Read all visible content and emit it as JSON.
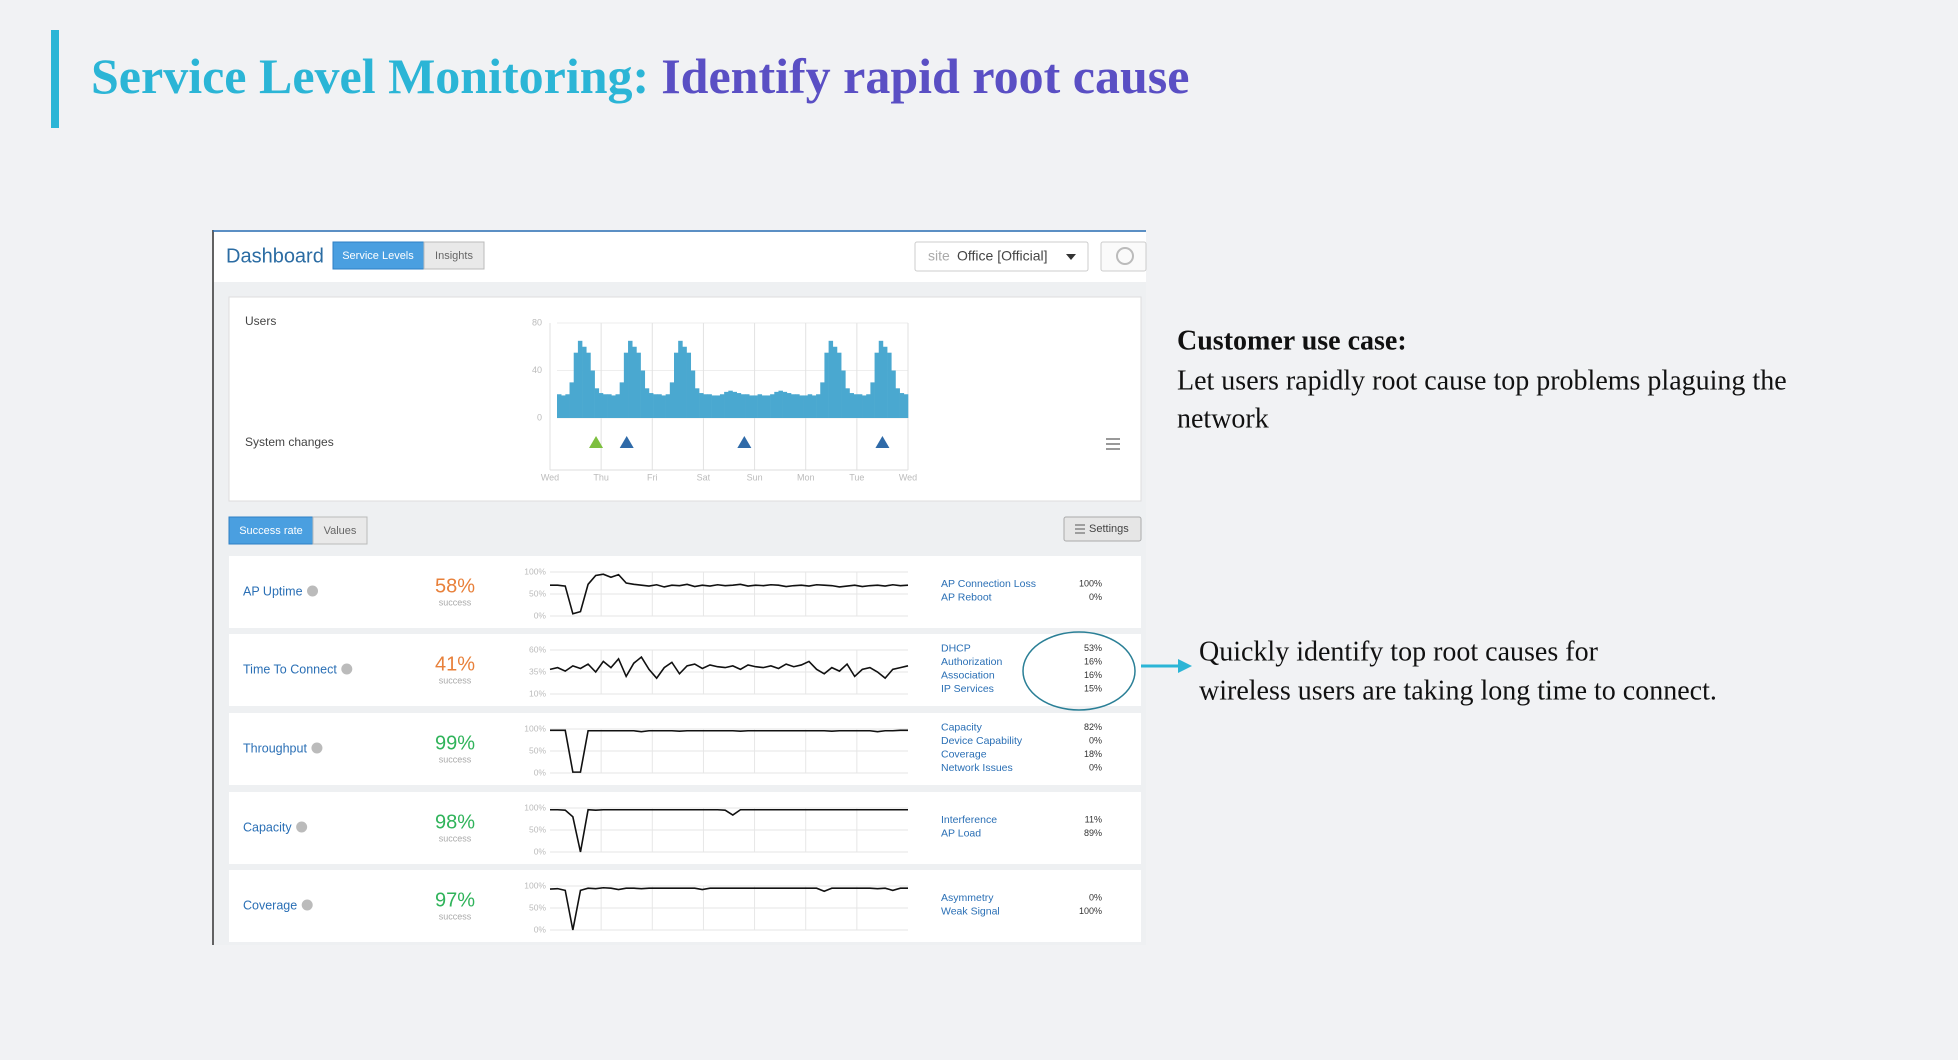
{
  "slide": {
    "title_part1": "Service Level Monitoring:",
    "title_part2": "Identify rapid root cause",
    "use_case_heading": "Customer use case:",
    "use_case_lines": [
      "Let users rapidly root cause top problems plaguing the",
      "network"
    ],
    "callout_lines": [
      "Quickly identify top root causes for",
      "wireless users are taking long time to connect."
    ]
  },
  "dashboard": {
    "title": "Dashboard",
    "tabs": [
      "Service Levels",
      "Insights"
    ],
    "site_label": "site",
    "site_value": "Office [Official]",
    "users_chart": {
      "type": "bar",
      "title": "Users",
      "events_label": "System changes",
      "ylim": [
        0,
        80
      ],
      "yticks": [
        80,
        40,
        0
      ],
      "xlim": [
        0,
        7
      ],
      "xticks": [
        {
          "value": 0,
          "label": "Wed"
        },
        {
          "value": 1,
          "label": "Thu"
        },
        {
          "value": 2,
          "label": "Fri"
        },
        {
          "value": 3,
          "label": "Sat"
        },
        {
          "value": 4,
          "label": "Sun"
        },
        {
          "value": 5,
          "label": "Mon"
        },
        {
          "value": 6,
          "label": "Tue"
        },
        {
          "value": 7,
          "label": "Wed"
        }
      ],
      "color": "#4aa8d0",
      "values": [
        20,
        19,
        20,
        30,
        55,
        65,
        60,
        55,
        40,
        25,
        21,
        20,
        20,
        19,
        20,
        30,
        55,
        65,
        60,
        55,
        40,
        25,
        21,
        20,
        20,
        19,
        20,
        30,
        55,
        65,
        60,
        55,
        40,
        25,
        21,
        20,
        20,
        19,
        19,
        20,
        22,
        23,
        22,
        21,
        20,
        20,
        19,
        19,
        20,
        19,
        19,
        20,
        22,
        23,
        22,
        21,
        20,
        20,
        19,
        19,
        20,
        19,
        20,
        30,
        55,
        65,
        60,
        55,
        40,
        25,
        21,
        20,
        20,
        19,
        20,
        30,
        55,
        65,
        60,
        55,
        40,
        25,
        21,
        20
      ],
      "events": [
        {
          "x": 0.9,
          "color": "#7dbf3f"
        },
        {
          "x": 1.5,
          "color": "#2f6aa8"
        },
        {
          "x": 3.8,
          "color": "#2f6aa8"
        },
        {
          "x": 6.5,
          "color": "#2f6aa8"
        }
      ]
    },
    "view_toggle": [
      "Success rate",
      "Values"
    ],
    "settings": "Settings",
    "rows": [
      {
        "name": "AP Uptime",
        "percent": "58%",
        "sub": "success",
        "color": "#e8803a",
        "ylim": [
          0,
          100
        ],
        "yticks": [
          {
            "value": 100,
            "label": "100%"
          },
          {
            "value": 50,
            "label": "50%"
          },
          {
            "value": 0,
            "label": "0%"
          }
        ],
        "values": [
          70,
          70,
          68,
          5,
          10,
          72,
          92,
          95,
          88,
          94,
          75,
          72,
          70,
          68,
          71,
          66,
          70,
          69,
          72,
          67,
          70,
          68,
          71,
          69,
          70,
          72,
          68,
          70,
          69,
          71,
          70,
          67,
          69,
          70,
          68,
          71,
          70,
          69,
          66,
          68,
          70,
          67,
          69,
          70,
          68,
          71,
          69,
          70
        ],
        "causes": [
          {
            "label": "AP Connection Loss",
            "value": "100%"
          },
          {
            "label": "AP Reboot",
            "value": "0%"
          }
        ]
      },
      {
        "name": "Time To Connect",
        "percent": "41%",
        "sub": "success",
        "color": "#e8803a",
        "ylim": [
          10,
          60
        ],
        "yticks": [
          {
            "value": 60,
            "label": "60%"
          },
          {
            "value": 35,
            "label": "35%"
          },
          {
            "value": 10,
            "label": "10%"
          }
        ],
        "values": [
          38,
          40,
          36,
          42,
          39,
          44,
          35,
          47,
          40,
          50,
          30,
          45,
          52,
          38,
          28,
          40,
          46,
          33,
          42,
          44,
          39,
          43,
          41,
          40,
          42,
          38,
          43,
          41,
          40,
          42,
          39,
          44,
          41,
          43,
          47,
          38,
          33,
          40,
          36,
          44,
          30,
          38,
          40,
          35,
          28,
          38,
          40,
          42
        ],
        "causes": [
          {
            "label": "DHCP",
            "value": "53%"
          },
          {
            "label": "Authorization",
            "value": "16%"
          },
          {
            "label": "Association",
            "value": "16%"
          },
          {
            "label": "IP Services",
            "value": "15%"
          }
        ]
      },
      {
        "name": "Throughput",
        "percent": "99%",
        "sub": "success",
        "color": "#2fb35a",
        "ylim": [
          0,
          100
        ],
        "yticks": [
          {
            "value": 100,
            "label": "100%"
          },
          {
            "value": 50,
            "label": "50%"
          },
          {
            "value": 0,
            "label": "0%"
          }
        ],
        "values": [
          97,
          97,
          97,
          2,
          2,
          96,
          96,
          96,
          96,
          96,
          96,
          96,
          94,
          96,
          96,
          96,
          96,
          95,
          96,
          96,
          96,
          96,
          96,
          96,
          96,
          95,
          96,
          96,
          96,
          96,
          96,
          96,
          96,
          96,
          96,
          96,
          96,
          95,
          96,
          96,
          96,
          96,
          96,
          94,
          96,
          96,
          97,
          97
        ],
        "causes": [
          {
            "label": "Capacity",
            "value": "82%"
          },
          {
            "label": "Device Capability",
            "value": "0%"
          },
          {
            "label": "Coverage",
            "value": "18%"
          },
          {
            "label": "Network Issues",
            "value": "0%"
          }
        ]
      },
      {
        "name": "Capacity",
        "percent": "98%",
        "sub": "success",
        "color": "#2fb35a",
        "ylim": [
          0,
          100
        ],
        "yticks": [
          {
            "value": 100,
            "label": "100%"
          },
          {
            "value": 50,
            "label": "50%"
          },
          {
            "value": 0,
            "label": "0%"
          }
        ],
        "values": [
          96,
          96,
          95,
          80,
          0,
          96,
          95,
          96,
          96,
          96,
          96,
          96,
          96,
          96,
          96,
          96,
          96,
          96,
          96,
          96,
          96,
          96,
          96,
          95,
          84,
          96,
          96,
          96,
          96,
          96,
          96,
          96,
          96,
          96,
          96,
          96,
          96,
          96,
          96,
          96,
          96,
          96,
          96,
          96,
          96,
          96,
          96,
          96
        ],
        "causes": [
          {
            "label": "Interference",
            "value": "11%"
          },
          {
            "label": "AP Load",
            "value": "89%"
          }
        ]
      },
      {
        "name": "Coverage",
        "percent": "97%",
        "sub": "success",
        "color": "#2fb35a",
        "ylim": [
          0,
          100
        ],
        "yticks": [
          {
            "value": 100,
            "label": "100%"
          },
          {
            "value": 50,
            "label": "50%"
          },
          {
            "value": 0,
            "label": "0%"
          }
        ],
        "values": [
          93,
          94,
          90,
          0,
          90,
          95,
          94,
          96,
          95,
          92,
          95,
          95,
          94,
          95,
          95,
          95,
          95,
          95,
          95,
          95,
          92,
          95,
          95,
          95,
          95,
          95,
          95,
          95,
          95,
          95,
          95,
          95,
          95,
          95,
          95,
          95,
          88,
          95,
          95,
          95,
          95,
          95,
          95,
          94,
          95,
          90,
          95,
          95
        ],
        "causes": [
          {
            "label": "Asymmetry",
            "value": "0%"
          },
          {
            "label": "Weak Signal",
            "value": "100%"
          }
        ]
      }
    ]
  }
}
